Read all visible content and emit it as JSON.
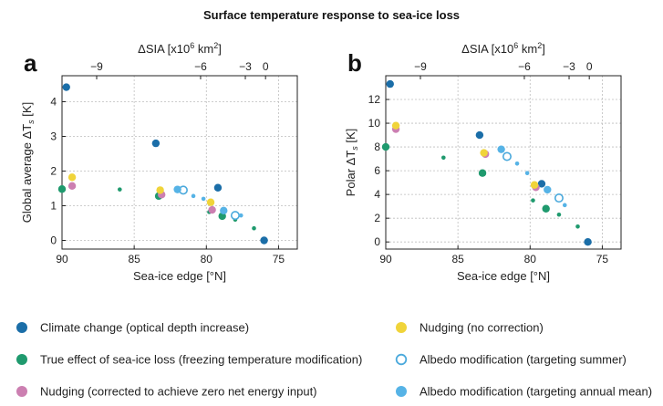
{
  "title": "Surface temperature response to sea-ice loss",
  "colors": {
    "climate_change": "#1b6ea8",
    "true_effect": "#1f9a6e",
    "nudging_corrected": "#cc7fb1",
    "nudging_no_correction": "#f0d43a",
    "albedo_summer": "#4aa9dc",
    "albedo_annual": "#56b3e6"
  },
  "legend": [
    {
      "key": "climate_change",
      "label": "Climate change (optical depth increase)",
      "marker": "filled"
    },
    {
      "key": "true_effect",
      "label": "True effect of sea-ice loss (freezing temperature modification)",
      "marker": "filled"
    },
    {
      "key": "nudging_corrected",
      "label": "Nudging (corrected to achieve zero net energy input)",
      "marker": "filled"
    },
    {
      "key": "nudging_no_correction",
      "label": "Nudging (no correction)",
      "marker": "filled"
    },
    {
      "key": "albedo_summer",
      "label": "Albedo modification (targeting summer)",
      "marker": "open"
    },
    {
      "key": "albedo_annual",
      "label": "Albedo modification (targeting annual mean)",
      "marker": "filled"
    }
  ],
  "chart_data": [
    {
      "panel": "a",
      "type": "scatter",
      "xlabel": "Sea-ice edge [°N]",
      "ylabel": "Global average ΔT",
      "ylabel_sub": "s",
      "ylabel_unit": " [K]",
      "top_xlabel": "ΔSIA [x10",
      "top_xlabel_exp": "6",
      "top_xlabel_unit": " km",
      "top_xlabel_exp2": "2",
      "top_xlabel_end": "]",
      "xlim": [
        90,
        73.7
      ],
      "ylim": [
        -0.25,
        4.75
      ],
      "xticks": [
        90,
        85,
        80,
        75
      ],
      "yticks": [
        0,
        1,
        2,
        3,
        4
      ],
      "top_ticks": [
        {
          "label": "−9",
          "at": 87.6
        },
        {
          "label": "−6",
          "at": 80.4
        },
        {
          "label": "−3",
          "at": 77.3
        },
        {
          "label": "0",
          "at": 75.9
        }
      ],
      "series": [
        {
          "key": "climate_change",
          "size": "large",
          "points": [
            [
              89.7,
              4.42
            ],
            [
              83.5,
              2.8
            ],
            [
              79.2,
              1.52
            ],
            [
              76.0,
              0.0
            ]
          ]
        },
        {
          "key": "true_effect",
          "size": "large",
          "points": [
            [
              90.0,
              1.48
            ],
            [
              83.3,
              1.28
            ],
            [
              78.9,
              0.7
            ]
          ]
        },
        {
          "key": "true_effect",
          "size": "small",
          "points": [
            [
              86.0,
              1.47
            ],
            [
              79.8,
              0.82
            ],
            [
              78.0,
              0.6
            ],
            [
              76.7,
              0.35
            ]
          ]
        },
        {
          "key": "nudging_corrected",
          "size": "large",
          "points": [
            [
              89.3,
              1.57
            ],
            [
              83.1,
              1.32
            ],
            [
              79.6,
              0.88
            ]
          ]
        },
        {
          "key": "nudging_no_correction",
          "size": "large",
          "points": [
            [
              89.3,
              1.82
            ],
            [
              83.2,
              1.45
            ],
            [
              79.7,
              1.1
            ]
          ]
        },
        {
          "key": "albedo_summer",
          "size": "open",
          "points": [
            [
              81.6,
              1.45
            ],
            [
              78.0,
              0.72
            ]
          ]
        },
        {
          "key": "albedo_annual",
          "size": "large",
          "points": [
            [
              82.0,
              1.47
            ],
            [
              78.8,
              0.86
            ]
          ]
        },
        {
          "key": "albedo_annual",
          "size": "small",
          "points": [
            [
              80.9,
              1.28
            ],
            [
              80.2,
              1.2
            ],
            [
              77.6,
              0.72
            ]
          ]
        }
      ]
    },
    {
      "panel": "b",
      "type": "scatter",
      "xlabel": "Sea-ice edge [°N]",
      "ylabel": "Polar ΔT",
      "ylabel_sub": "s",
      "ylabel_unit": " [K]",
      "top_xlabel": "ΔSIA [x10",
      "top_xlabel_exp": "6",
      "top_xlabel_unit": " km",
      "top_xlabel_exp2": "2",
      "top_xlabel_end": "]",
      "xlim": [
        90,
        73.7
      ],
      "ylim": [
        -0.6,
        14.0
      ],
      "xticks": [
        90,
        85,
        80,
        75
      ],
      "yticks": [
        0,
        2,
        4,
        6,
        8,
        10,
        12
      ],
      "top_ticks": [
        {
          "label": "−9",
          "at": 87.6
        },
        {
          "label": "−6",
          "at": 80.4
        },
        {
          "label": "−3",
          "at": 77.3
        },
        {
          "label": "0",
          "at": 75.9
        }
      ],
      "series": [
        {
          "key": "climate_change",
          "size": "large",
          "points": [
            [
              89.7,
              13.3
            ],
            [
              83.5,
              9.0
            ],
            [
              79.2,
              4.9
            ],
            [
              76.0,
              0.0
            ]
          ]
        },
        {
          "key": "true_effect",
          "size": "large",
          "points": [
            [
              90.0,
              8.0
            ],
            [
              83.3,
              5.8
            ],
            [
              78.9,
              2.8
            ]
          ]
        },
        {
          "key": "true_effect",
          "size": "small",
          "points": [
            [
              86.0,
              7.1
            ],
            [
              79.8,
              3.5
            ],
            [
              78.0,
              2.3
            ],
            [
              76.7,
              1.3
            ]
          ]
        },
        {
          "key": "nudging_corrected",
          "size": "large",
          "points": [
            [
              89.3,
              9.5
            ],
            [
              83.1,
              7.4
            ],
            [
              79.6,
              4.6
            ]
          ]
        },
        {
          "key": "nudging_no_correction",
          "size": "large",
          "points": [
            [
              89.3,
              9.8
            ],
            [
              83.2,
              7.5
            ],
            [
              79.7,
              4.8
            ]
          ]
        },
        {
          "key": "albedo_summer",
          "size": "open",
          "points": [
            [
              81.6,
              7.2
            ],
            [
              78.0,
              3.7
            ]
          ]
        },
        {
          "key": "albedo_annual",
          "size": "large",
          "points": [
            [
              82.0,
              7.8
            ],
            [
              78.8,
              4.4
            ]
          ]
        },
        {
          "key": "albedo_annual",
          "size": "small",
          "points": [
            [
              80.9,
              6.6
            ],
            [
              80.2,
              5.8
            ],
            [
              77.6,
              3.1
            ]
          ]
        }
      ]
    }
  ]
}
